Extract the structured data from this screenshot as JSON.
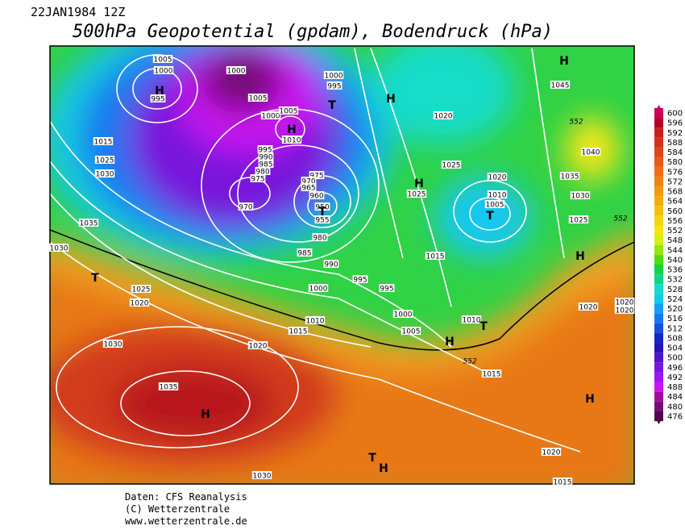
{
  "header": {
    "date": "22JAN1984 12Z",
    "title": "500hPa Geopotential (gpdam), Bodendruck (hPa)"
  },
  "colorbar": {
    "ticks": [
      600,
      596,
      592,
      588,
      584,
      580,
      576,
      572,
      568,
      564,
      560,
      556,
      552,
      548,
      544,
      540,
      536,
      532,
      528,
      524,
      520,
      516,
      512,
      508,
      504,
      500,
      496,
      492,
      488,
      484,
      480,
      476
    ]
  },
  "map_labels": [
    "1005",
    "1000",
    "995",
    "H",
    "1000",
    "1005",
    "1000",
    "1005",
    "H",
    "1010",
    "1000",
    "995",
    "T",
    "H",
    "1020",
    "1025",
    "1020",
    "1010",
    "1005",
    "T",
    "1025",
    "H",
    "1045",
    "H",
    "552",
    "1040",
    "1035",
    "1030",
    "1025",
    "552",
    "H",
    "1015",
    "1025",
    "1030",
    "1035",
    "1030",
    "T",
    "995",
    "990",
    "985",
    "980",
    "975",
    "970",
    "975",
    "970",
    "965",
    "960",
    "950",
    "T",
    "955",
    "980",
    "985",
    "990",
    "995",
    "995",
    "1000",
    "1025",
    "1020",
    "1010",
    "1015",
    "1020",
    "1030",
    "1035",
    "H",
    "1000",
    "1005",
    "1015",
    "1010",
    "T",
    "H",
    "552",
    "1015",
    "1020",
    "1020",
    "1020",
    "H",
    "1020",
    "1015",
    "1030",
    "T",
    "H"
  ],
  "footer": {
    "source": "Daten: CFS Reanalysis",
    "copyright": "(C) Wetterzentrale",
    "url": "www.wetterzentrale.de"
  }
}
